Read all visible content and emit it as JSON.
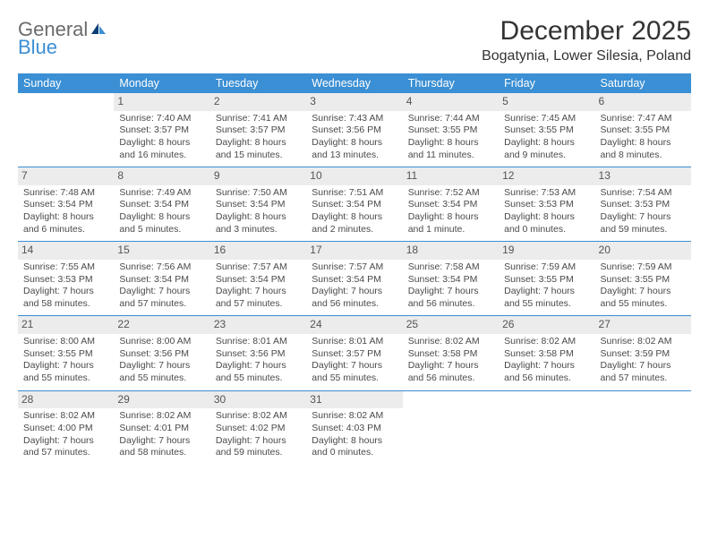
{
  "logo": {
    "line1": "General",
    "line2": "Blue"
  },
  "title": "December 2025",
  "location": "Bogatynia, Lower Silesia, Poland",
  "colors": {
    "accent": "#3b8fd4",
    "logo_gray": "#6b6b6b",
    "logo_blue": "#3b8fd4",
    "daystrip_bg": "#ececec",
    "text": "#4a4a4a",
    "background": "#ffffff"
  },
  "weekdays": [
    "Sunday",
    "Monday",
    "Tuesday",
    "Wednesday",
    "Thursday",
    "Friday",
    "Saturday"
  ],
  "weeks": [
    [
      {
        "day": "",
        "lines": []
      },
      {
        "day": "1",
        "lines": [
          "Sunrise: 7:40 AM",
          "Sunset: 3:57 PM",
          "Daylight: 8 hours and 16 minutes."
        ]
      },
      {
        "day": "2",
        "lines": [
          "Sunrise: 7:41 AM",
          "Sunset: 3:57 PM",
          "Daylight: 8 hours and 15 minutes."
        ]
      },
      {
        "day": "3",
        "lines": [
          "Sunrise: 7:43 AM",
          "Sunset: 3:56 PM",
          "Daylight: 8 hours and 13 minutes."
        ]
      },
      {
        "day": "4",
        "lines": [
          "Sunrise: 7:44 AM",
          "Sunset: 3:55 PM",
          "Daylight: 8 hours and 11 minutes."
        ]
      },
      {
        "day": "5",
        "lines": [
          "Sunrise: 7:45 AM",
          "Sunset: 3:55 PM",
          "Daylight: 8 hours and 9 minutes."
        ]
      },
      {
        "day": "6",
        "lines": [
          "Sunrise: 7:47 AM",
          "Sunset: 3:55 PM",
          "Daylight: 8 hours and 8 minutes."
        ]
      }
    ],
    [
      {
        "day": "7",
        "lines": [
          "Sunrise: 7:48 AM",
          "Sunset: 3:54 PM",
          "Daylight: 8 hours and 6 minutes."
        ]
      },
      {
        "day": "8",
        "lines": [
          "Sunrise: 7:49 AM",
          "Sunset: 3:54 PM",
          "Daylight: 8 hours and 5 minutes."
        ]
      },
      {
        "day": "9",
        "lines": [
          "Sunrise: 7:50 AM",
          "Sunset: 3:54 PM",
          "Daylight: 8 hours and 3 minutes."
        ]
      },
      {
        "day": "10",
        "lines": [
          "Sunrise: 7:51 AM",
          "Sunset: 3:54 PM",
          "Daylight: 8 hours and 2 minutes."
        ]
      },
      {
        "day": "11",
        "lines": [
          "Sunrise: 7:52 AM",
          "Sunset: 3:54 PM",
          "Daylight: 8 hours and 1 minute."
        ]
      },
      {
        "day": "12",
        "lines": [
          "Sunrise: 7:53 AM",
          "Sunset: 3:53 PM",
          "Daylight: 8 hours and 0 minutes."
        ]
      },
      {
        "day": "13",
        "lines": [
          "Sunrise: 7:54 AM",
          "Sunset: 3:53 PM",
          "Daylight: 7 hours and 59 minutes."
        ]
      }
    ],
    [
      {
        "day": "14",
        "lines": [
          "Sunrise: 7:55 AM",
          "Sunset: 3:53 PM",
          "Daylight: 7 hours and 58 minutes."
        ]
      },
      {
        "day": "15",
        "lines": [
          "Sunrise: 7:56 AM",
          "Sunset: 3:54 PM",
          "Daylight: 7 hours and 57 minutes."
        ]
      },
      {
        "day": "16",
        "lines": [
          "Sunrise: 7:57 AM",
          "Sunset: 3:54 PM",
          "Daylight: 7 hours and 57 minutes."
        ]
      },
      {
        "day": "17",
        "lines": [
          "Sunrise: 7:57 AM",
          "Sunset: 3:54 PM",
          "Daylight: 7 hours and 56 minutes."
        ]
      },
      {
        "day": "18",
        "lines": [
          "Sunrise: 7:58 AM",
          "Sunset: 3:54 PM",
          "Daylight: 7 hours and 56 minutes."
        ]
      },
      {
        "day": "19",
        "lines": [
          "Sunrise: 7:59 AM",
          "Sunset: 3:55 PM",
          "Daylight: 7 hours and 55 minutes."
        ]
      },
      {
        "day": "20",
        "lines": [
          "Sunrise: 7:59 AM",
          "Sunset: 3:55 PM",
          "Daylight: 7 hours and 55 minutes."
        ]
      }
    ],
    [
      {
        "day": "21",
        "lines": [
          "Sunrise: 8:00 AM",
          "Sunset: 3:55 PM",
          "Daylight: 7 hours and 55 minutes."
        ]
      },
      {
        "day": "22",
        "lines": [
          "Sunrise: 8:00 AM",
          "Sunset: 3:56 PM",
          "Daylight: 7 hours and 55 minutes."
        ]
      },
      {
        "day": "23",
        "lines": [
          "Sunrise: 8:01 AM",
          "Sunset: 3:56 PM",
          "Daylight: 7 hours and 55 minutes."
        ]
      },
      {
        "day": "24",
        "lines": [
          "Sunrise: 8:01 AM",
          "Sunset: 3:57 PM",
          "Daylight: 7 hours and 55 minutes."
        ]
      },
      {
        "day": "25",
        "lines": [
          "Sunrise: 8:02 AM",
          "Sunset: 3:58 PM",
          "Daylight: 7 hours and 56 minutes."
        ]
      },
      {
        "day": "26",
        "lines": [
          "Sunrise: 8:02 AM",
          "Sunset: 3:58 PM",
          "Daylight: 7 hours and 56 minutes."
        ]
      },
      {
        "day": "27",
        "lines": [
          "Sunrise: 8:02 AM",
          "Sunset: 3:59 PM",
          "Daylight: 7 hours and 57 minutes."
        ]
      }
    ],
    [
      {
        "day": "28",
        "lines": [
          "Sunrise: 8:02 AM",
          "Sunset: 4:00 PM",
          "Daylight: 7 hours and 57 minutes."
        ]
      },
      {
        "day": "29",
        "lines": [
          "Sunrise: 8:02 AM",
          "Sunset: 4:01 PM",
          "Daylight: 7 hours and 58 minutes."
        ]
      },
      {
        "day": "30",
        "lines": [
          "Sunrise: 8:02 AM",
          "Sunset: 4:02 PM",
          "Daylight: 7 hours and 59 minutes."
        ]
      },
      {
        "day": "31",
        "lines": [
          "Sunrise: 8:02 AM",
          "Sunset: 4:03 PM",
          "Daylight: 8 hours and 0 minutes."
        ]
      },
      {
        "day": "",
        "lines": []
      },
      {
        "day": "",
        "lines": []
      },
      {
        "day": "",
        "lines": []
      }
    ]
  ]
}
